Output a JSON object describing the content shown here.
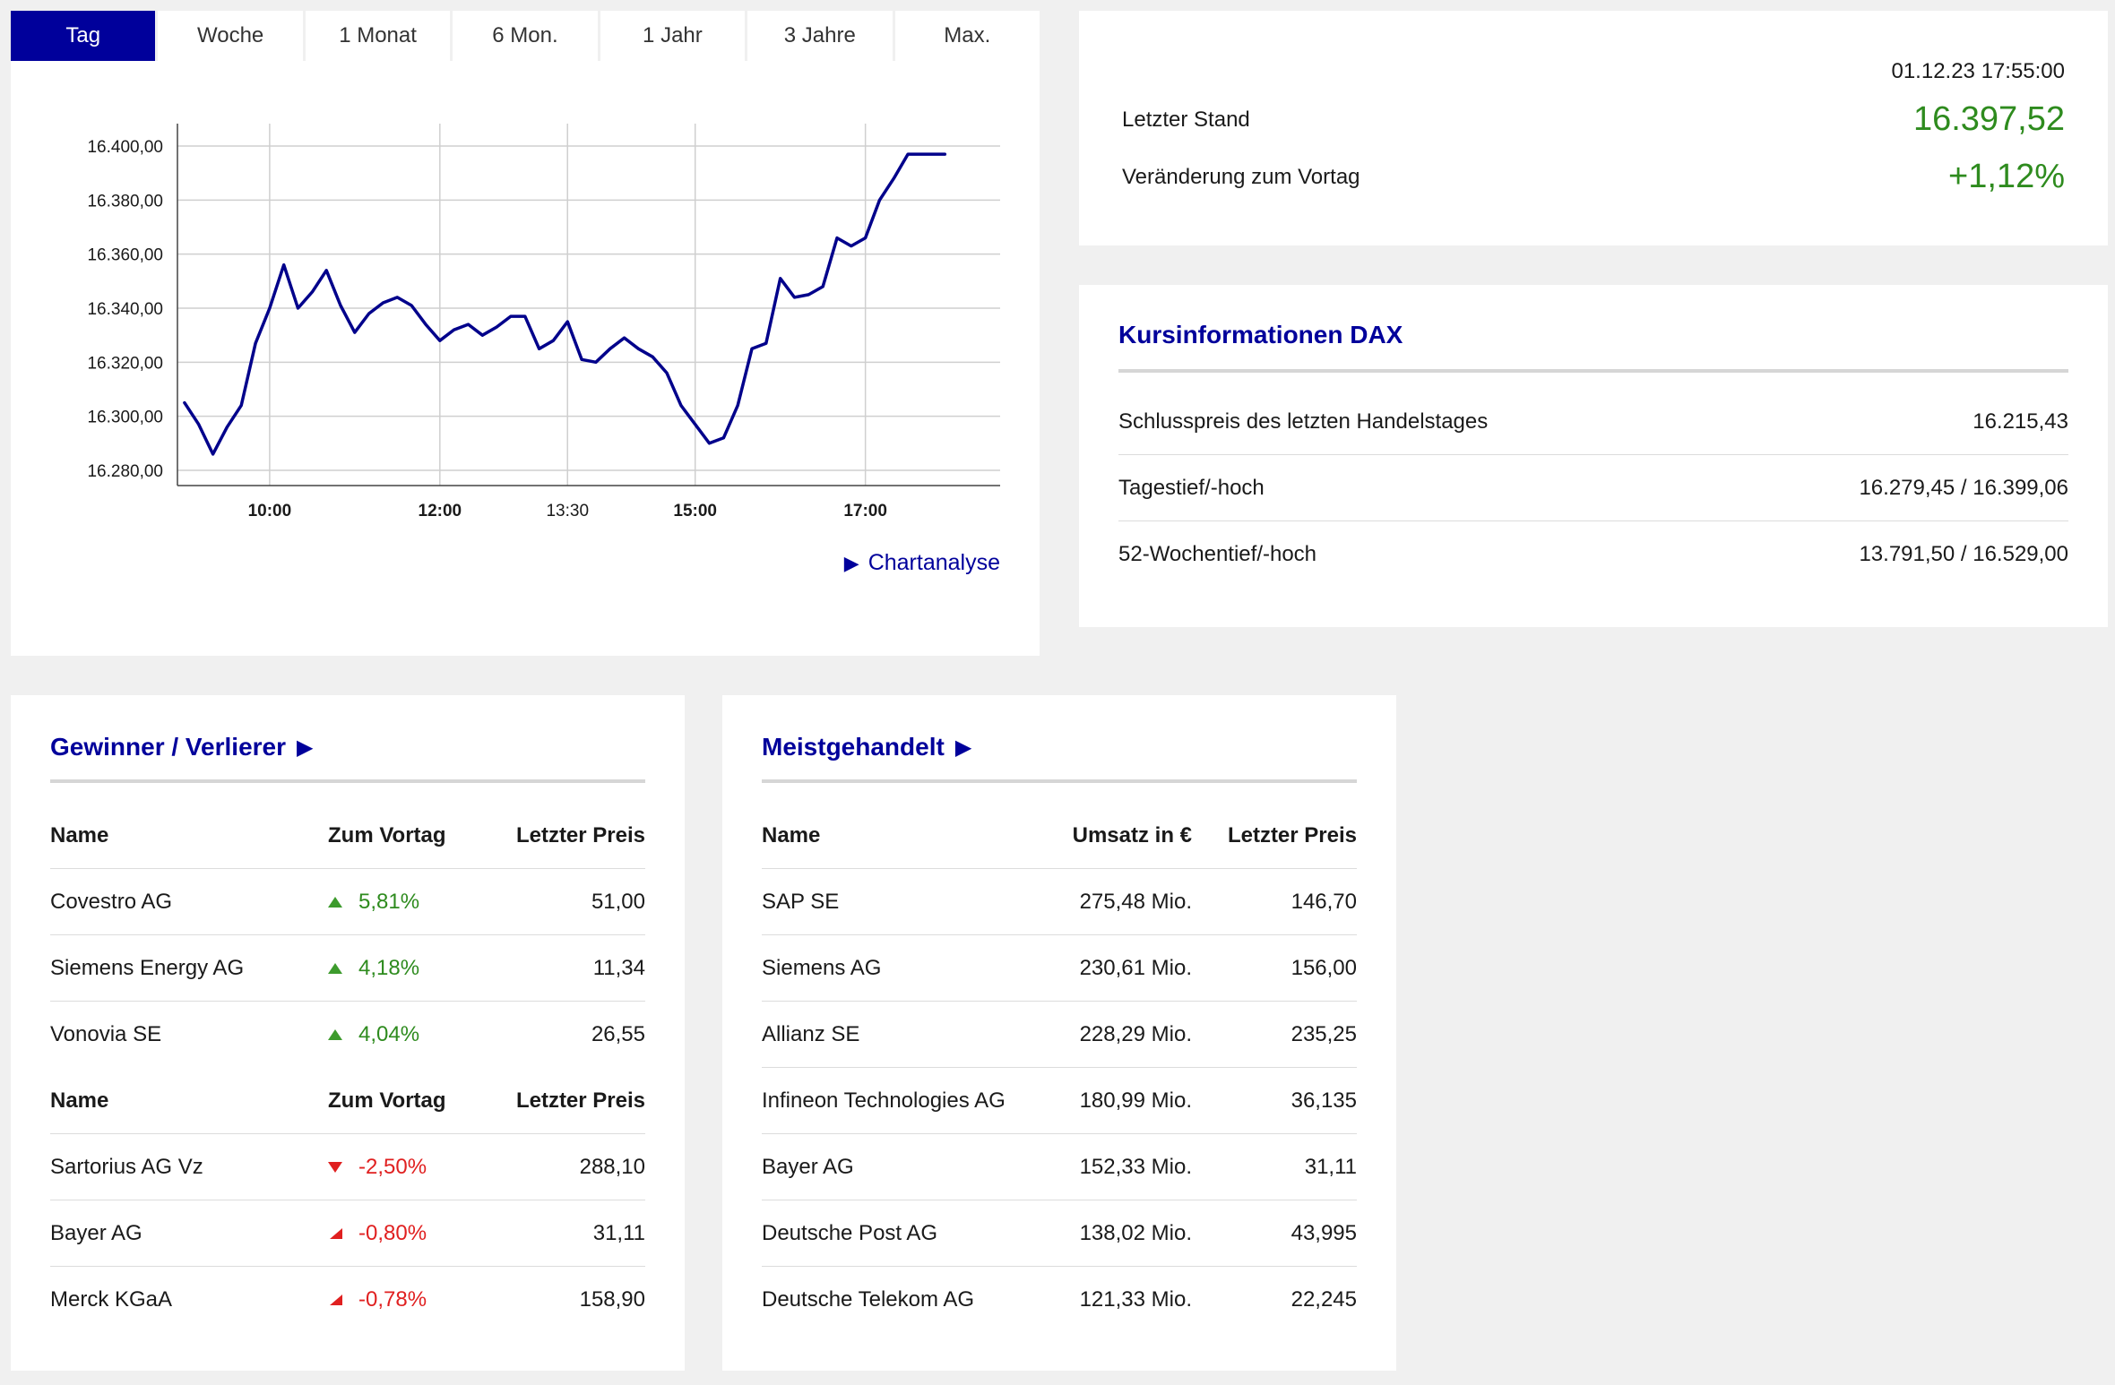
{
  "chart_panel": {
    "tabs": [
      {
        "label": "Tag",
        "active": true
      },
      {
        "label": "Woche",
        "active": false
      },
      {
        "label": "1 Monat",
        "active": false
      },
      {
        "label": "6 Mon.",
        "active": false
      },
      {
        "label": "1 Jahr",
        "active": false
      },
      {
        "label": "3 Jahre",
        "active": false
      },
      {
        "label": "Max.",
        "active": false
      }
    ],
    "link_label": "Chartanalyse",
    "link_icon": "play-triangle-icon"
  },
  "chart_data": {
    "type": "line",
    "title": "",
    "xlabel": "",
    "ylabel": "",
    "y_ticks": [
      "16.400,00",
      "16.380,00",
      "16.360,00",
      "16.340,00",
      "16.320,00",
      "16.300,00",
      "16.280,00"
    ],
    "y_tick_values": [
      16400,
      16380,
      16360,
      16340,
      16320,
      16300,
      16280
    ],
    "x_ticks": [
      {
        "label": "10:00",
        "minutes": 600,
        "bold": true
      },
      {
        "label": "12:00",
        "minutes": 720,
        "bold": true
      },
      {
        "label": "13:30",
        "minutes": 810,
        "bold": false
      },
      {
        "label": "15:00",
        "minutes": 900,
        "bold": true
      },
      {
        "label": "17:00",
        "minutes": 1020,
        "bold": true
      }
    ],
    "xlim_minutes": [
      535,
      1115
    ],
    "ylim": [
      16275,
      16400
    ],
    "grid": true,
    "line_color": "#00008b",
    "series": [
      {
        "x_minutes": [
          540,
          550,
          560,
          570,
          580,
          590,
          600,
          610,
          620,
          630,
          640,
          650,
          660,
          670,
          680,
          690,
          700,
          710,
          720,
          730,
          740,
          750,
          760,
          770,
          780,
          790,
          800,
          810,
          820,
          830,
          840,
          850,
          860,
          870,
          880,
          890,
          900,
          910,
          920,
          930,
          940,
          950,
          960,
          970,
          980,
          990,
          1000,
          1010,
          1020,
          1030,
          1040,
          1050,
          1060,
          1070,
          1076
        ],
        "values": [
          16305,
          16297,
          16286,
          16296,
          16304,
          16327,
          16340,
          16356,
          16340,
          16346,
          16354,
          16341,
          16331,
          16338,
          16342,
          16344,
          16341,
          16334,
          16328,
          16332,
          16334,
          16330,
          16333,
          16337,
          16337,
          16325,
          16328,
          16335,
          16321,
          16320,
          16325,
          16329,
          16325,
          16322,
          16316,
          16304,
          16297,
          16290,
          16292,
          16304,
          16325,
          16327,
          16351,
          16344,
          16345,
          16348,
          16366,
          16363,
          16366,
          16380,
          16388,
          16397,
          16397,
          16397,
          16397
        ]
      }
    ]
  },
  "stand": {
    "timestamp": "01.12.23 17:55:00",
    "last_label": "Letzter Stand",
    "last_value": "16.397,52",
    "change_label": "Veränderung zum Vortag",
    "change_value": "+1,12%"
  },
  "info": {
    "title": "Kursinformationen DAX",
    "rows": [
      {
        "label": "Schlusspreis des letzten Handelstages",
        "value": "16.215,43"
      },
      {
        "label": "Tagestief/-hoch",
        "value": "16.279,45 / 16.399,06"
      },
      {
        "label": "52-Wochentief/-hoch",
        "value": "13.791,50 / 16.529,00"
      }
    ]
  },
  "gainers_losers": {
    "title": "Gewinner / Verlierer",
    "header": {
      "name": "Name",
      "change": "Zum Vortag",
      "price": "Letzter Preis"
    },
    "gainers": [
      {
        "name": "Covestro AG",
        "change": "5,81%",
        "price": "51,00",
        "icon": "triangle-up-icon"
      },
      {
        "name": "Siemens Energy AG",
        "change": "4,18%",
        "price": "11,34",
        "icon": "triangle-up-icon"
      },
      {
        "name": "Vonovia SE",
        "change": "4,04%",
        "price": "26,55",
        "icon": "triangle-up-icon"
      }
    ],
    "losers": [
      {
        "name": "Sartorius AG Vz",
        "change": "-2,50%",
        "price": "288,10",
        "icon": "triangle-down-icon"
      },
      {
        "name": "Bayer AG",
        "change": "-0,80%",
        "price": "31,11",
        "icon": "triangle-down-right-icon"
      },
      {
        "name": "Merck KGaA",
        "change": "-0,78%",
        "price": "158,90",
        "icon": "triangle-down-right-icon"
      }
    ]
  },
  "most_traded": {
    "title": "Meistgehandelt",
    "header": {
      "name": "Name",
      "volume": "Umsatz in €",
      "price": "Letzter Preis"
    },
    "rows": [
      {
        "name": "SAP SE",
        "volume": "275,48 Mio.",
        "price": "146,70"
      },
      {
        "name": "Siemens AG",
        "volume": "230,61 Mio.",
        "price": "156,00"
      },
      {
        "name": "Allianz SE",
        "volume": "228,29 Mio.",
        "price": "235,25"
      },
      {
        "name": "Infineon Technologies AG",
        "volume": "180,99 Mio.",
        "price": "36,135"
      },
      {
        "name": "Bayer AG",
        "volume": "152,33 Mio.",
        "price": "31,11"
      },
      {
        "name": "Deutsche Post AG",
        "volume": "138,02 Mio.",
        "price": "43,995"
      },
      {
        "name": "Deutsche Telekom AG",
        "volume": "121,33 Mio.",
        "price": "22,245"
      }
    ]
  },
  "colors": {
    "accent": "#00009b",
    "positive": "#2e8b1e",
    "negative": "#e02020",
    "background": "#f0f0f0"
  }
}
